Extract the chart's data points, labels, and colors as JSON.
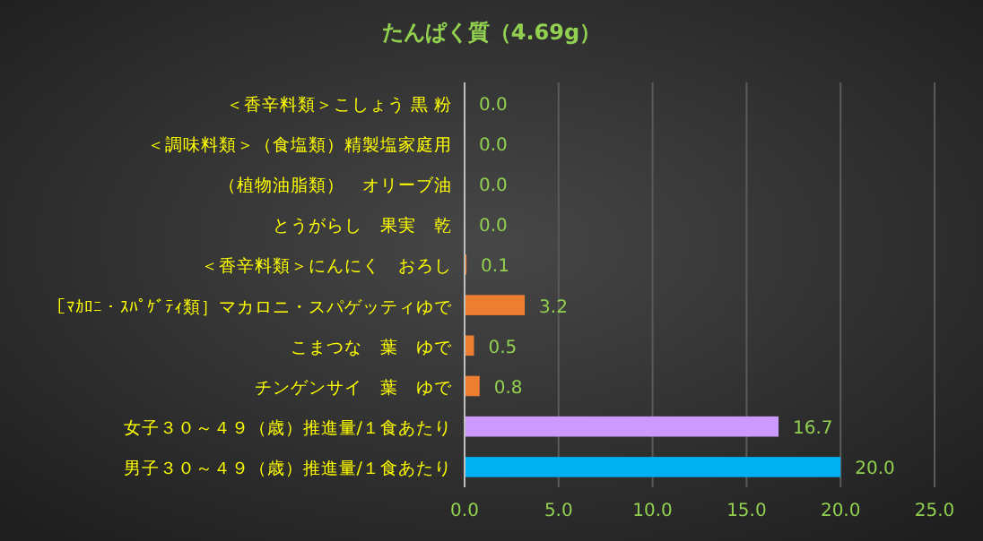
{
  "chart_data": {
    "type": "bar",
    "orientation": "horizontal",
    "title": "たんぱく質（4.69g）",
    "categories": [
      "＜香辛料類＞こしょう 黒 粉",
      "＜調味料類＞（食塩類）精製塩家庭用",
      "（植物油脂類）　オリーブ油",
      "とうがらし　果実　乾",
      "＜香辛料類＞にんにく　おろし",
      "［ﾏｶﾛﾆ・ｽﾊﾟｹﾞﾃｨ類］マカロニ・スパゲッティゆで",
      "こまつな　葉　ゆで",
      "チンゲンサイ　葉　ゆで",
      "女子３０～４９（歳）推進量/１食あたり",
      "男子３０～４９（歳）推進量/１食あたり"
    ],
    "values": [
      0.0,
      0.0,
      0.0,
      0.0,
      0.1,
      3.2,
      0.5,
      0.8,
      16.7,
      20.0
    ],
    "value_labels": [
      "0.0",
      "0.0",
      "0.0",
      "0.0",
      "0.1",
      "3.2",
      "0.5",
      "0.8",
      "16.7",
      "20.0"
    ],
    "colors": [
      "#ed7d31",
      "#ed7d31",
      "#ed7d31",
      "#ed7d31",
      "#ed7d31",
      "#ed7d31",
      "#ed7d31",
      "#ed7d31",
      "#cc99ff",
      "#00b0f0"
    ],
    "xlim": [
      0,
      25
    ],
    "xticks": [
      {
        "value": 0,
        "label": "0.0"
      },
      {
        "value": 5,
        "label": "5.0"
      },
      {
        "value": 10,
        "label": "10.0"
      },
      {
        "value": 15,
        "label": "15.0"
      },
      {
        "value": 20,
        "label": "20.0"
      },
      {
        "value": 25,
        "label": "25.0"
      }
    ],
    "grid": "x"
  }
}
